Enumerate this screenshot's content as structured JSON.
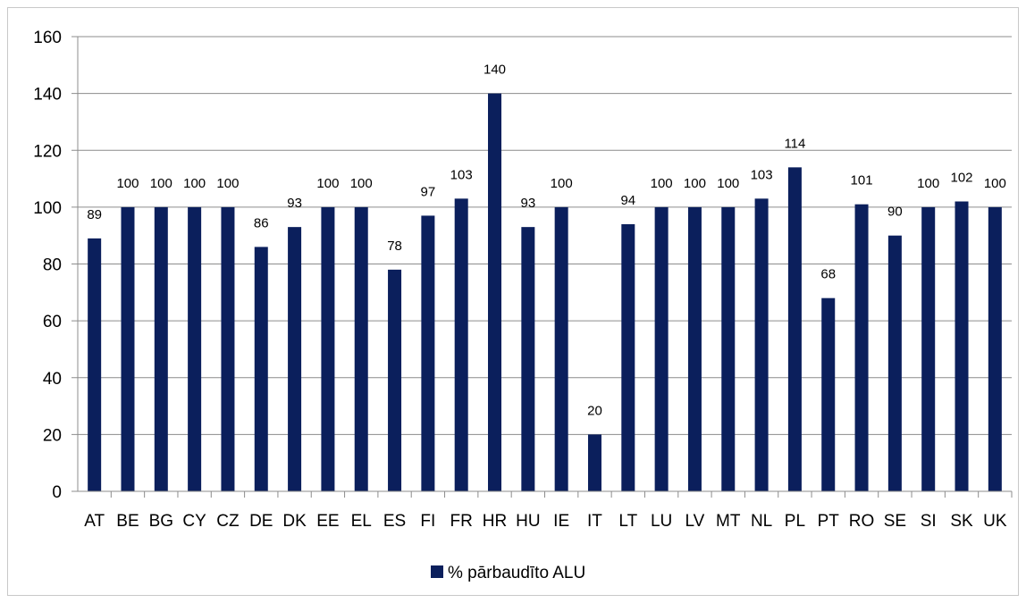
{
  "chart_data": {
    "type": "bar",
    "categories": [
      "AT",
      "BE",
      "BG",
      "CY",
      "CZ",
      "DE",
      "DK",
      "EE",
      "EL",
      "ES",
      "FI",
      "FR",
      "HR",
      "HU",
      "IE",
      "IT",
      "LT",
      "LU",
      "LV",
      "MT",
      "NL",
      "PL",
      "PT",
      "RO",
      "SE",
      "SI",
      "SK",
      "UK"
    ],
    "series": [
      {
        "name": "% pārbaudīto ALU",
        "values": [
          89,
          100,
          100,
          100,
          100,
          86,
          93,
          100,
          100,
          78,
          97,
          103,
          140,
          93,
          100,
          20,
          94,
          100,
          100,
          100,
          103,
          114,
          68,
          101,
          90,
          100,
          102,
          100
        ],
        "labels": [
          "89",
          "100",
          "100",
          "100",
          "100",
          "86",
          "93",
          "100",
          "100",
          "78",
          "97",
          "103",
          "140",
          "93",
          "100",
          "20",
          "94",
          "100",
          "100",
          "100",
          "103",
          "114",
          "68",
          "101",
          "90",
          "100",
          "102",
          "100"
        ],
        "color": "#0b1f5c"
      }
    ],
    "yticks": [
      "0",
      "20",
      "40",
      "60",
      "80",
      "100",
      "120",
      "140",
      "160"
    ],
    "ylim": [
      0,
      160
    ],
    "grid": true,
    "legend": "bottom",
    "title": "",
    "xlabel": "",
    "ylabel": ""
  },
  "colors": {
    "bar": "#0b1f5c",
    "grid": "#8c8c8c",
    "axis": "#8c8c8c"
  }
}
